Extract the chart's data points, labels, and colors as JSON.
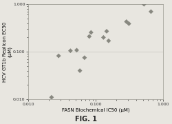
{
  "x_data": [
    0.022,
    0.028,
    0.042,
    0.052,
    0.058,
    0.068,
    0.08,
    0.085,
    0.13,
    0.145,
    0.155,
    0.285,
    0.31,
    0.52,
    0.66
  ],
  "y_data": [
    0.011,
    0.082,
    0.105,
    0.108,
    0.04,
    0.075,
    0.21,
    0.255,
    0.2,
    0.27,
    0.17,
    0.43,
    0.39,
    1.0,
    0.7
  ],
  "marker_color": "#888880",
  "marker_size": 3.5,
  "marker_style": "D",
  "xlim": [
    0.01,
    1.0
  ],
  "ylim": [
    0.01,
    1.0
  ],
  "xlabel": "FASN Biochemical IC50 (μM)",
  "ylabel": "HCV GT1b Replicon EC50\n(μM)",
  "caption": "FIG. 1",
  "xticks": [
    0.01,
    0.1,
    1.0
  ],
  "yticks": [
    0.01,
    0.1,
    1.0
  ],
  "xtick_labels": [
    "0.010",
    "0.100",
    "1.000"
  ],
  "ytick_labels": [
    "0.010",
    "0.100",
    "1.000"
  ],
  "background_color": "#e8e6e0",
  "plot_bg_color": "#e8e6e0",
  "grid_color": "#c8c4be",
  "spine_color": "#999990"
}
